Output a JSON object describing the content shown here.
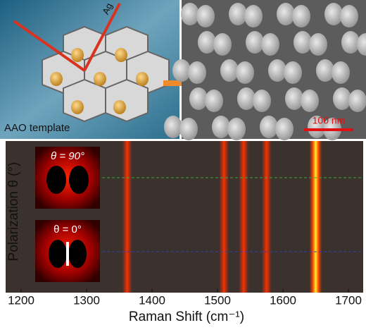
{
  "illustration": {
    "label_ag": "Ag",
    "label_template": "AAO template"
  },
  "sem": {
    "scale_bar": "100 nm"
  },
  "insets": {
    "top": "θ = 90°",
    "bottom": "θ = 0°"
  },
  "chart_data": {
    "type": "heatmap",
    "xlabel": "Raman Shift (cm⁻¹)",
    "ylabel": "Polarization θ (°)",
    "xlim": [
      1180,
      1720
    ],
    "xticks": [
      1200,
      1300,
      1400,
      1500,
      1600,
      1700
    ],
    "peaks": [
      1362,
      1510,
      1540,
      1575,
      1650
    ]
  }
}
